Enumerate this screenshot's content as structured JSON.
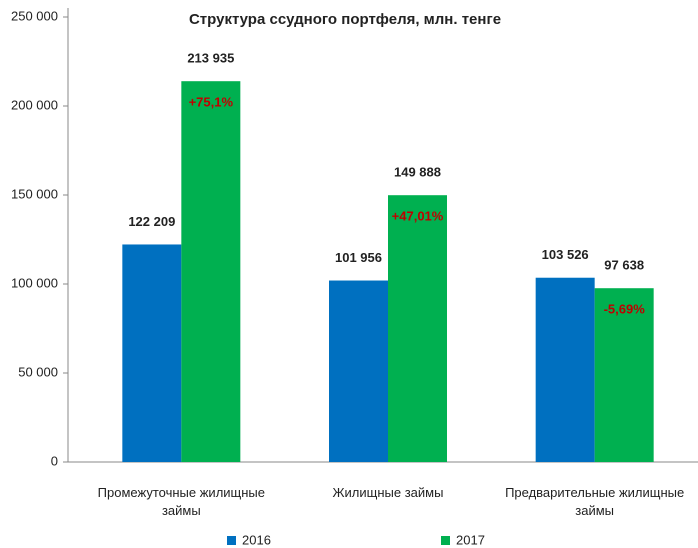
{
  "chart_data": {
    "type": "bar",
    "title": "Структура ссудного портфеля, млн. тенге",
    "categories": [
      "Промежуточные  жилищные займы",
      "Жилищные займы",
      "Предварительные жилищные займы"
    ],
    "series": [
      {
        "name": "2016",
        "color": "#0070c0",
        "values": [
          122209,
          101956,
          103526
        ],
        "value_labels": [
          "122 209",
          "101 956",
          "103 526"
        ]
      },
      {
        "name": "2017",
        "color": "#00b050",
        "values": [
          213935,
          149888,
          97638
        ],
        "value_labels": [
          "213 935",
          "149 888",
          "97 638"
        ]
      }
    ],
    "annotations": [
      "+75,1%",
      "+47,01%",
      "-5,69%"
    ],
    "ylim": [
      0,
      250000
    ],
    "yticks": [
      0,
      {
        "value": 50000,
        "label": "50 000"
      },
      {
        "value": 100000,
        "label": "100 000"
      },
      {
        "value": 150000,
        "label": "150 000"
      },
      {
        "value": 200000,
        "label": "200 000"
      },
      {
        "value": 250000,
        "label": "250 000"
      }
    ],
    "grid": false,
    "legend": "bottom"
  }
}
